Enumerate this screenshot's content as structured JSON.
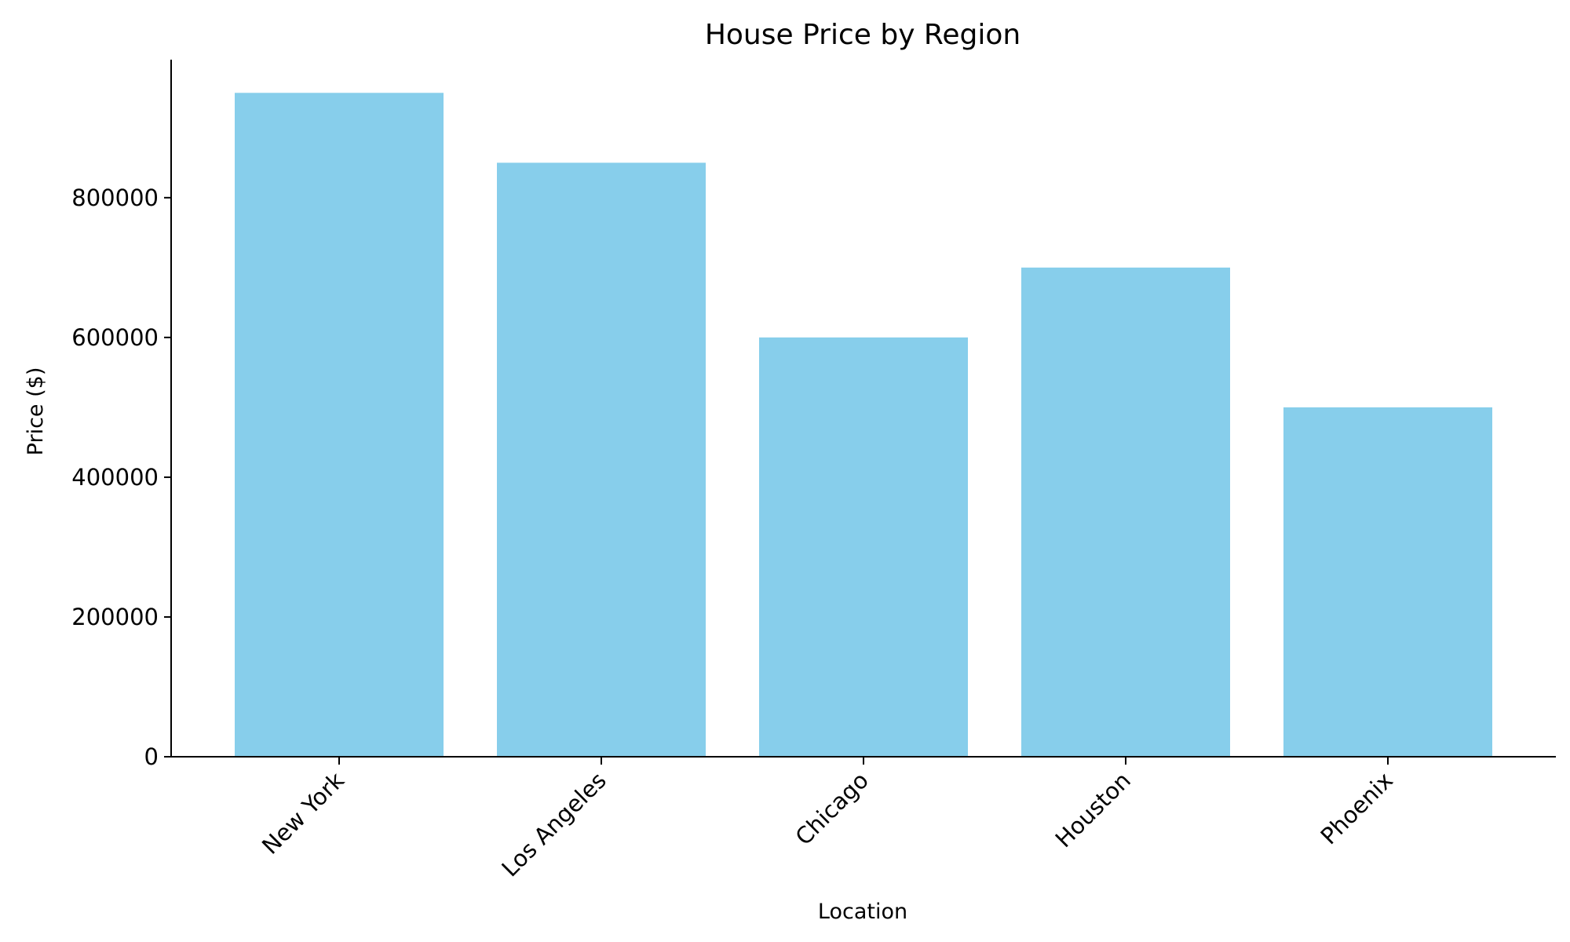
{
  "chart_data": {
    "type": "bar",
    "title": "House Price by Region",
    "xlabel": "Location",
    "ylabel": "Price ($)",
    "categories": [
      "New York",
      "Los Angeles",
      "Chicago",
      "Houston",
      "Phoenix"
    ],
    "values": [
      950000,
      850000,
      600000,
      700000,
      500000
    ],
    "ylim": [
      0,
      997500
    ],
    "yticks": [
      0,
      200000,
      400000,
      600000,
      800000
    ],
    "ytick_labels": [
      "0",
      "200000",
      "400000",
      "600000",
      "800000"
    ],
    "bar_color": "#87CEEB",
    "axis_color": "#000000",
    "grid": false,
    "legend": "none"
  }
}
